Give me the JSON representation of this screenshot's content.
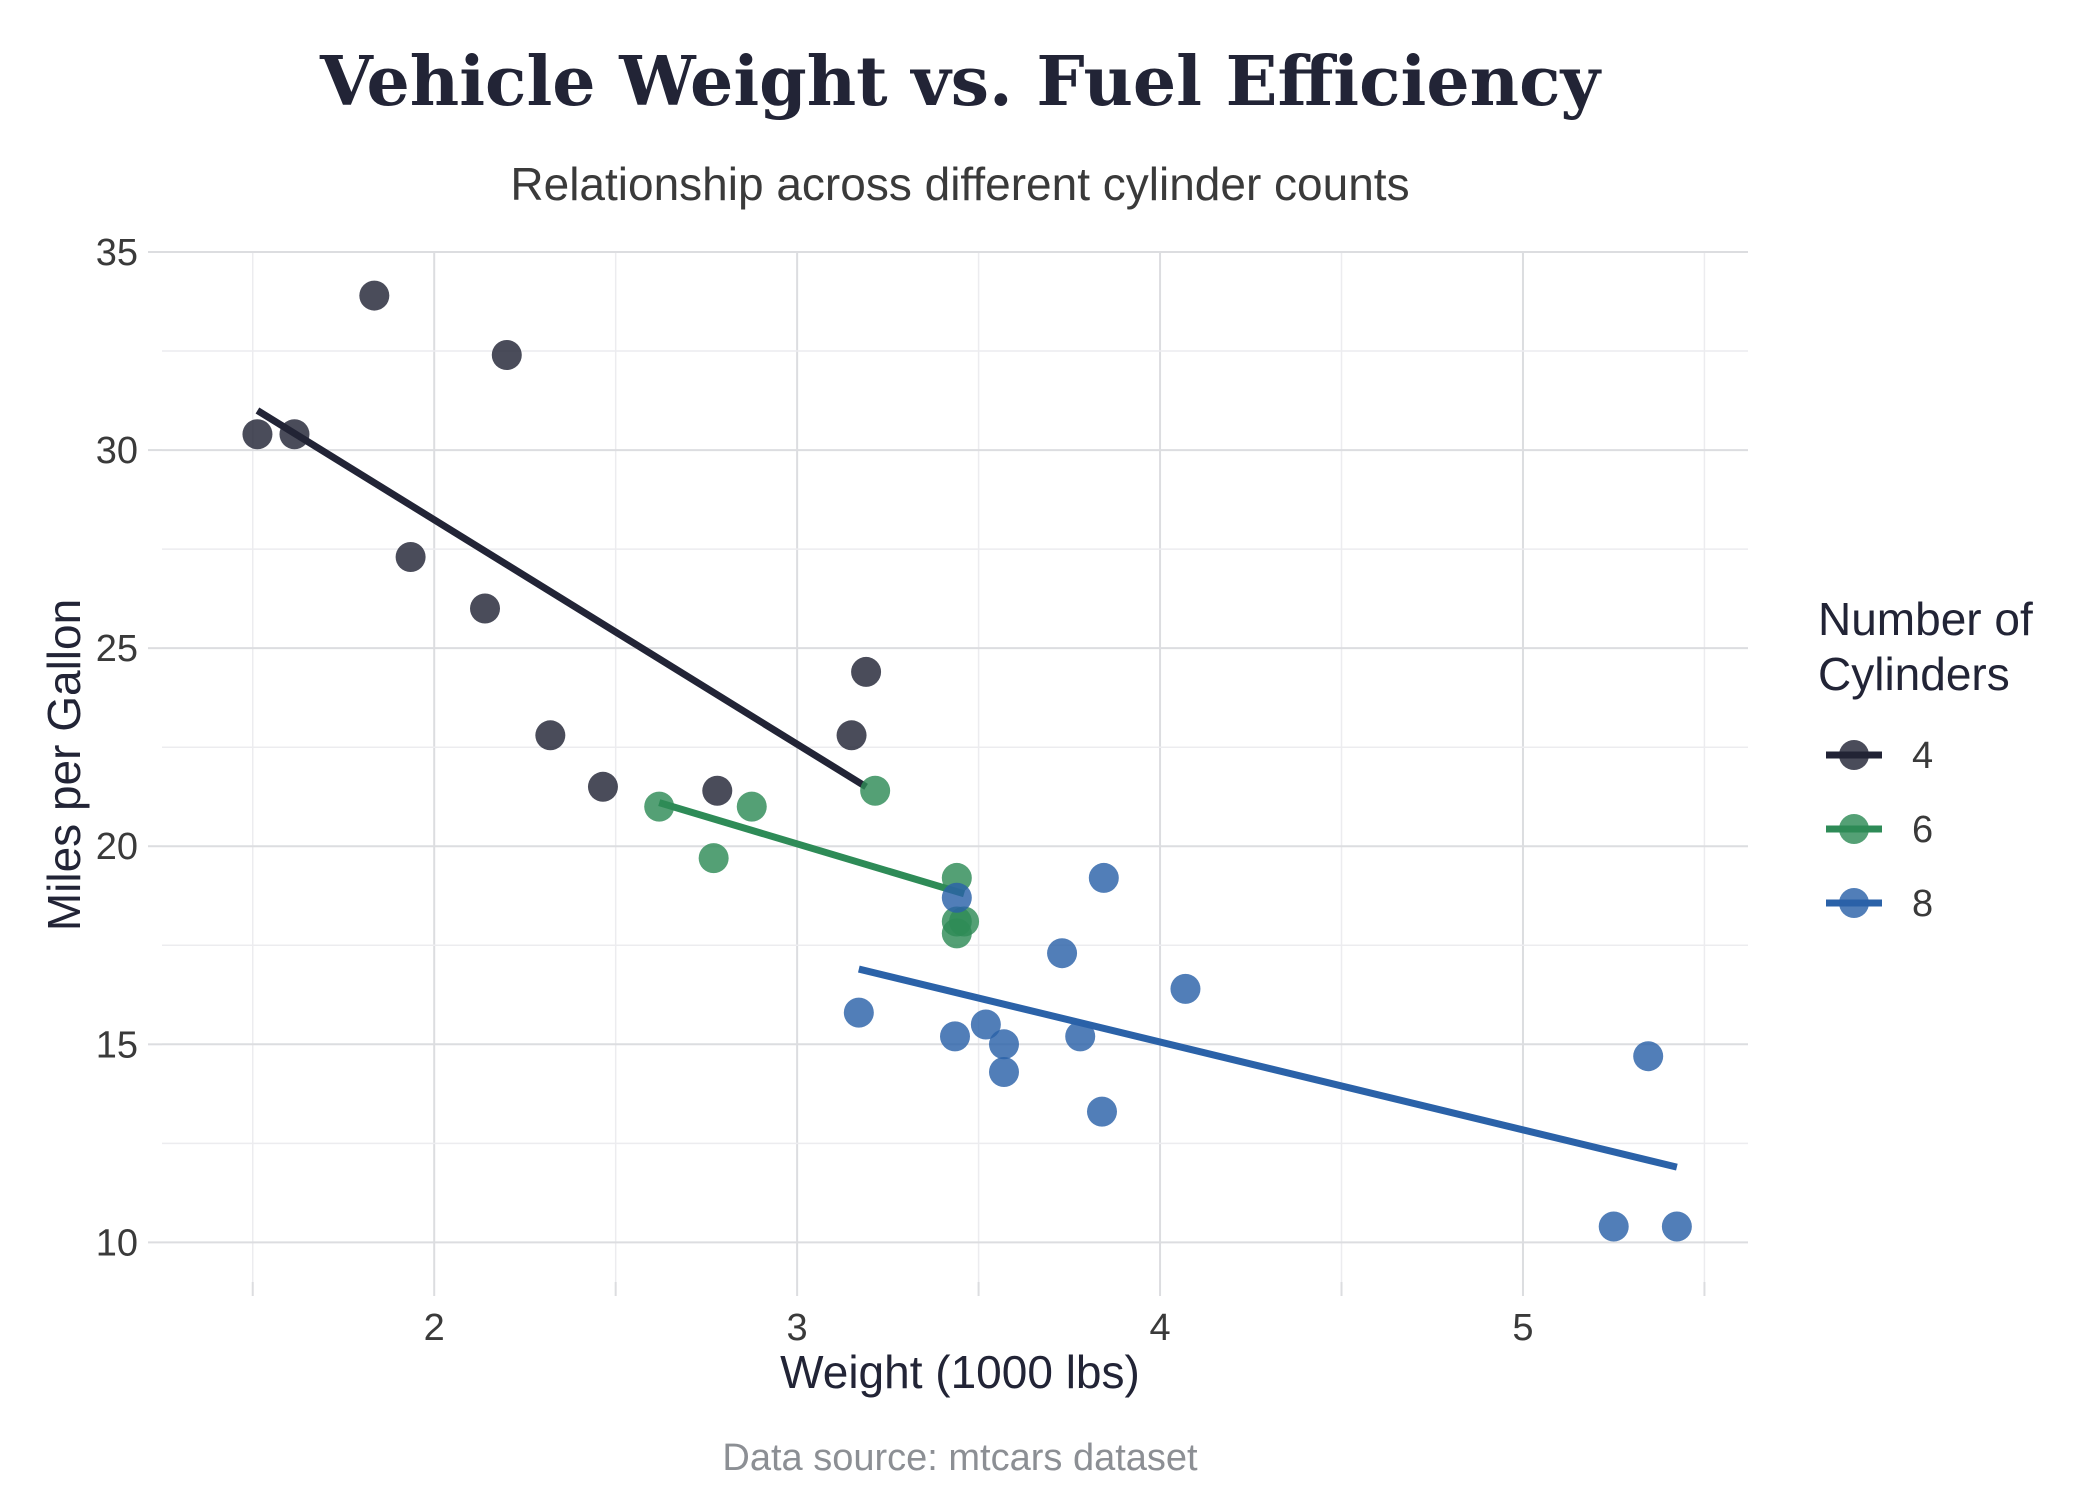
{
  "chart_data": {
    "type": "scatter",
    "title": "Vehicle Weight vs. Fuel Efficiency",
    "subtitle": "Relationship across different cylinder counts",
    "xlabel": "Weight (1000 lbs)",
    "ylabel": "Miles per Gallon",
    "caption": "Data source: mtcars dataset",
    "xlim": [
      1.25,
      5.62
    ],
    "ylim": [
      9.0,
      35.0
    ],
    "x_ticks": [
      2,
      3,
      4,
      5
    ],
    "y_ticks": [
      10,
      15,
      20,
      25,
      30,
      35
    ],
    "grid": true,
    "legend": {
      "title_line1": "Number of",
      "title_line2": "Cylinders",
      "position": "right"
    },
    "series": [
      {
        "name": "4",
        "color": "#222436",
        "points": [
          {
            "x": 2.32,
            "y": 22.8
          },
          {
            "x": 3.19,
            "y": 24.4
          },
          {
            "x": 3.15,
            "y": 22.8
          },
          {
            "x": 2.2,
            "y": 32.4
          },
          {
            "x": 1.615,
            "y": 30.4
          },
          {
            "x": 1.835,
            "y": 33.9
          },
          {
            "x": 2.465,
            "y": 21.5
          },
          {
            "x": 1.935,
            "y": 27.3
          },
          {
            "x": 2.14,
            "y": 26.0
          },
          {
            "x": 1.513,
            "y": 30.4
          },
          {
            "x": 2.78,
            "y": 21.4
          }
        ],
        "fit": {
          "x": [
            1.513,
            3.19
          ],
          "y": [
            31.0,
            21.5
          ]
        }
      },
      {
        "name": "6",
        "color": "#2e8b57",
        "points": [
          {
            "x": 2.62,
            "y": 21.0
          },
          {
            "x": 2.875,
            "y": 21.0
          },
          {
            "x": 3.215,
            "y": 21.4
          },
          {
            "x": 3.44,
            "y": 18.1
          },
          {
            "x": 3.44,
            "y": 17.8
          },
          {
            "x": 3.46,
            "y": 18.1
          },
          {
            "x": 3.44,
            "y": 19.2
          },
          {
            "x": 2.77,
            "y": 19.7
          }
        ],
        "fit": {
          "x": [
            2.62,
            3.46
          ],
          "y": [
            21.1,
            18.8
          ]
        }
      },
      {
        "name": "8",
        "color": "#2b62a8",
        "points": [
          {
            "x": 3.44,
            "y": 18.7
          },
          {
            "x": 3.57,
            "y": 14.3
          },
          {
            "x": 4.07,
            "y": 16.4
          },
          {
            "x": 3.73,
            "y": 17.3
          },
          {
            "x": 3.78,
            "y": 15.2
          },
          {
            "x": 5.25,
            "y": 10.4
          },
          {
            "x": 5.424,
            "y": 10.4
          },
          {
            "x": 5.345,
            "y": 14.7
          },
          {
            "x": 3.52,
            "y": 15.5
          },
          {
            "x": 3.435,
            "y": 15.2
          },
          {
            "x": 3.84,
            "y": 13.3
          },
          {
            "x": 3.845,
            "y": 19.2
          },
          {
            "x": 3.17,
            "y": 15.8
          },
          {
            "x": 3.57,
            "y": 15.0
          }
        ],
        "fit": {
          "x": [
            3.17,
            5.424
          ],
          "y": [
            16.9,
            11.9
          ]
        }
      }
    ]
  }
}
